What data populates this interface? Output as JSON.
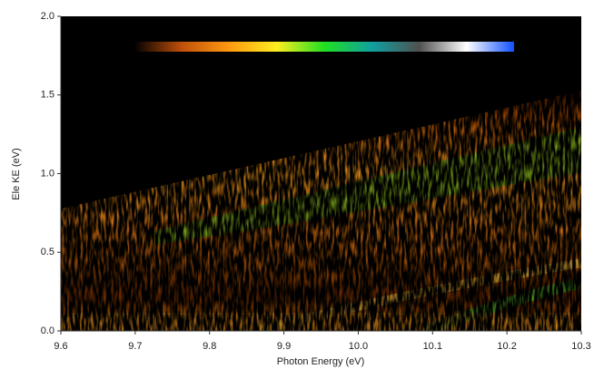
{
  "chart_data": {
    "type": "heatmap",
    "x_label": "Photon Energy (eV)",
    "y_label": "Ele KE (eV)",
    "xlim": [
      9.6,
      10.3
    ],
    "ylim": [
      0,
      2
    ],
    "xticks": [
      9.6,
      9.7,
      9.8,
      9.9,
      {
        "value": 10,
        "label": "10.0"
      },
      10.1,
      10.2,
      10.3
    ],
    "yticks": [
      {
        "value": 0,
        "label": "0.0"
      },
      0.5,
      {
        "value": 1,
        "label": "1.0"
      },
      1.5,
      {
        "value": 2,
        "label": "2.0"
      }
    ],
    "colormap": [
      "#000000",
      "#c0500a",
      "#ff9a10",
      "#ffee20",
      "#20e020",
      "#10a0a0",
      "#505050",
      "#ffffff",
      "#1050ff"
    ]
  }
}
